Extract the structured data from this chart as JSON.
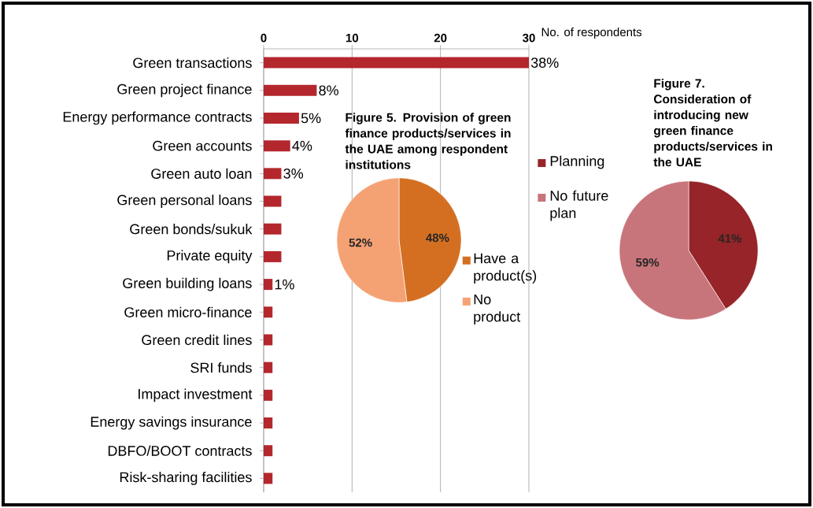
{
  "chart_data": [
    {
      "type": "bar",
      "orientation": "horizontal",
      "xlabel": "No. of respondents",
      "categories": [
        "Green transactions",
        "Green project finance",
        "Energy performance contracts",
        "Green accounts",
        "Green auto loan",
        "Green personal loans",
        "Green bonds/sukuk",
        "Private equity",
        "Green building loans",
        "Green micro-finance",
        "Green credit lines",
        "SRI funds",
        "Impact investment",
        "Energy savings insurance",
        "DBFO/BOOT contracts",
        "Risk-sharing facilities"
      ],
      "values": [
        30,
        6,
        4,
        3,
        2,
        2,
        2,
        2,
        1,
        1,
        1,
        1,
        1,
        1,
        1,
        1
      ],
      "annotations": [
        {
          "text": "38%",
          "x": 30,
          "y": "Green transactions"
        },
        {
          "text": "8%",
          "x": 6,
          "y": "Green project finance"
        },
        {
          "text": "5%",
          "x": 4,
          "y": "Energy performance contracts"
        },
        {
          "text": "4%",
          "x": 3,
          "y": "Green accounts"
        },
        {
          "text": "3%",
          "x": 2,
          "y": "Green auto loan"
        },
        {
          "text": "1%",
          "x": 1,
          "y": "Green building loans"
        }
      ],
      "color": "#b3272d",
      "xlim": [
        0,
        30
      ],
      "xticks": [
        0,
        10,
        20,
        30
      ],
      "grid": "x"
    },
    {
      "type": "pie",
      "title": "Figure 5.  Provision of green finance products/services in the UAE among respondent institutions",
      "categories": [
        "Have a product(s)",
        "No product"
      ],
      "values": [
        48,
        52
      ],
      "value_labels": [
        "48%",
        "52%"
      ],
      "colors": [
        "#d46f22",
        "#f4a274"
      ],
      "legend": "right"
    },
    {
      "type": "pie",
      "title": "Figure 7. Consideration of introducing new green finance products/services in the UAE",
      "categories": [
        "Planning",
        "No future plan"
      ],
      "values": [
        41,
        59
      ],
      "value_labels": [
        "41%",
        "59%"
      ],
      "colors": [
        "#962428",
        "#c7757b"
      ],
      "legend": "left"
    }
  ]
}
